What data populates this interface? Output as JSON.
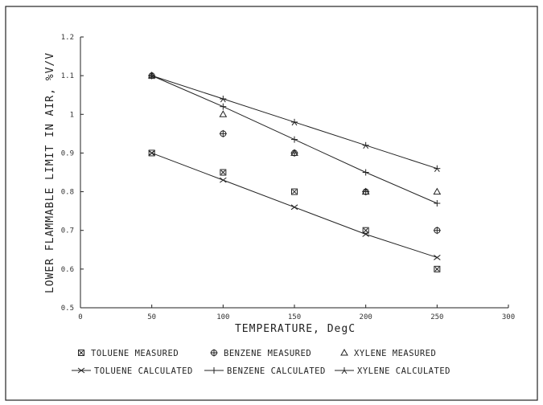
{
  "chart_data": {
    "type": "scatter",
    "xlabel": "TEMPERATURE, DegC",
    "ylabel": "LOWER FLAMMABLE LIMIT IN AIR, %V/V",
    "xlim": [
      0,
      300
    ],
    "ylim": [
      0.5,
      1.2
    ],
    "xticks": [
      0,
      50,
      100,
      150,
      200,
      250,
      300
    ],
    "yticks": [
      0.5,
      0.6,
      0.7,
      0.8,
      0.9,
      1.0,
      1.1,
      1.2
    ],
    "xtick_labels": [
      "0",
      "50",
      "100",
      "150",
      "200",
      "250",
      "300"
    ],
    "ytick_labels": [
      "0.5",
      "0.6",
      "0.7",
      "0.8",
      "0.9",
      "1",
      "1.1",
      "1.2"
    ],
    "grid": false,
    "legend_position": "bottom",
    "series": [
      {
        "name": "TOLUENE MEASURED",
        "kind": "points",
        "marker": "boxed-x",
        "x": [
          50,
          100,
          150,
          200,
          250
        ],
        "y": [
          0.9,
          0.85,
          0.8,
          0.7,
          0.6
        ]
      },
      {
        "name": "BENZENE MEASURED",
        "kind": "points",
        "marker": "circled-plus",
        "x": [
          50,
          100,
          150,
          200,
          250
        ],
        "y": [
          1.1,
          0.95,
          0.9,
          0.8,
          0.7
        ]
      },
      {
        "name": "XYLENE MEASURED",
        "kind": "points",
        "marker": "triangle",
        "x": [
          50,
          100,
          150,
          200,
          250
        ],
        "y": [
          1.1,
          1.0,
          0.9,
          0.8,
          0.8
        ]
      },
      {
        "name": "TOLUENE CALCULATED",
        "kind": "line",
        "marker": "x",
        "x": [
          50,
          100,
          150,
          200,
          250
        ],
        "y": [
          0.9,
          0.83,
          0.76,
          0.69,
          0.63
        ]
      },
      {
        "name": "BENZENE CALCULATED",
        "kind": "line",
        "marker": "plus",
        "x": [
          50,
          100,
          150,
          200,
          250
        ],
        "y": [
          1.1,
          1.02,
          0.935,
          0.85,
          0.77
        ]
      },
      {
        "name": "XYLENE CALCULATED",
        "kind": "line",
        "marker": "star",
        "x": [
          50,
          100,
          150,
          200,
          250
        ],
        "y": [
          1.1,
          1.04,
          0.98,
          0.92,
          0.86
        ]
      }
    ]
  }
}
